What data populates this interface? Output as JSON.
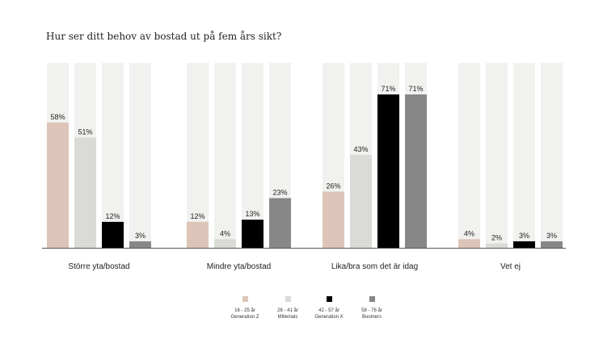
{
  "chart_data": {
    "type": "bar",
    "title": "Hur ser ditt behov av bostad ut på fem års sikt?",
    "categories": [
      "Större yta/bostad",
      "Mindre yta/bostad",
      "Lika/bra som det är idag",
      "Vet ej"
    ],
    "series": [
      {
        "name": "16 - 25 år Generation Z",
        "label_line1": "16 - 25 år",
        "label_line2": "Generation Z",
        "color": "#dcc5b8",
        "values": [
          58,
          12,
          26,
          4
        ]
      },
      {
        "name": "26 - 41 år Millenials",
        "label_line1": "26 - 41 år",
        "label_line2": "Millenials",
        "color": "#dadad6",
        "values": [
          51,
          4,
          43,
          2
        ]
      },
      {
        "name": "42 - 57 år Generation X",
        "label_line1": "42 - 57 år",
        "label_line2": "Generation X",
        "color": "#000000",
        "values": [
          12,
          13,
          71,
          3
        ]
      },
      {
        "name": "58 - 76 år Boomers",
        "label_line1": "58 - 76 år",
        "label_line2": "Boomers",
        "color": "#878787",
        "values": [
          3,
          23,
          71,
          3
        ]
      }
    ],
    "value_suffix": "%",
    "ylim": [
      0,
      71
    ],
    "background_bar_color": "#f1f1ef",
    "grid": false,
    "legend_position": "bottom"
  }
}
